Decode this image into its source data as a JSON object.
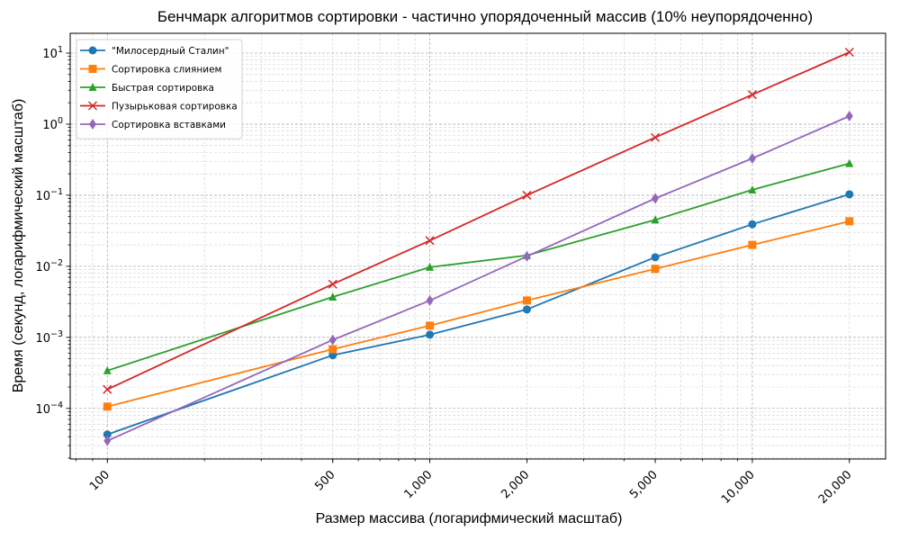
{
  "chart_data": {
    "type": "line",
    "title": "Бенчмарк алгоритмов сортировки - частично упорядоченный массив (10% неупорядоченно)",
    "xlabel": "Размер массива (логарифмический масштаб)",
    "ylabel": "Время (секунд, логарифмический масштаб)",
    "xscale": "log",
    "yscale": "log",
    "x": [
      100,
      500,
      1000,
      2000,
      5000,
      10000,
      20000
    ],
    "xtick_labels": [
      "100",
      "500",
      "1,000",
      "2,000",
      "5,000",
      "10,000",
      "20,000"
    ],
    "xtick_rotation": 45,
    "ytick_values": [
      0.0001,
      0.001,
      0.01,
      0.1,
      1,
      10
    ],
    "ytick_labels": [
      {
        "base": "10",
        "exp": "−4"
      },
      {
        "base": "10",
        "exp": "−3"
      },
      {
        "base": "10",
        "exp": "−2"
      },
      {
        "base": "10",
        "exp": "−1"
      },
      {
        "base": "10",
        "exp": "0"
      },
      {
        "base": "10",
        "exp": "1"
      }
    ],
    "xlim": [
      76.7,
      25900
    ],
    "ylim": [
      1.94e-05,
      19
    ],
    "grid": true,
    "grid_which": "both",
    "legend_position": "upper left",
    "series": [
      {
        "name": "\"Милосердный Сталин\"",
        "color": "#1f77b4",
        "marker": "circle",
        "values": [
          4.3e-05,
          0.00056,
          0.00109,
          0.00247,
          0.0134,
          0.039,
          0.103
        ]
      },
      {
        "name": "Сортировка слиянием",
        "color": "#ff7f0e",
        "marker": "square",
        "values": [
          0.000106,
          0.00068,
          0.00146,
          0.0033,
          0.0092,
          0.02,
          0.043
        ]
      },
      {
        "name": "Быстрая сортировка",
        "color": "#2ca02c",
        "marker": "triangle",
        "values": [
          0.00034,
          0.0037,
          0.0097,
          0.0142,
          0.045,
          0.119,
          0.28
        ]
      },
      {
        "name": "Пузырьковая сортировка",
        "color": "#d62728",
        "marker": "x",
        "values": [
          0.000185,
          0.0056,
          0.023,
          0.1,
          0.65,
          2.6,
          10.3
        ]
      },
      {
        "name": "Сортировка вставками",
        "color": "#9467bd",
        "marker": "diamond",
        "values": [
          3.5e-05,
          0.00092,
          0.0033,
          0.0138,
          0.09,
          0.33,
          1.3
        ]
      }
    ]
  }
}
